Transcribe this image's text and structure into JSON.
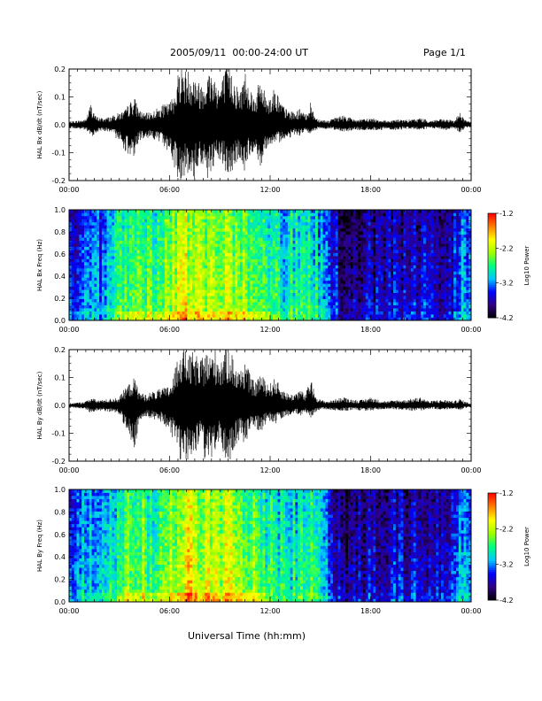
{
  "header": {
    "title": "2005/09/11  00:00-24:00 UT",
    "page": "Page 1/1"
  },
  "x_axis_title": "Universal Time (hh:mm)",
  "chart_data": [
    {
      "type": "line",
      "ylabel": "HAL Bx dB/dt (nT/sec)",
      "xlim_hours": [
        0,
        24
      ],
      "ylim": [
        -0.2,
        0.2
      ],
      "xticks": [
        "00:00",
        "06:00",
        "12:00",
        "18:00",
        "00:00"
      ],
      "yticks": [
        "-0.2",
        "-0.1",
        "0.0",
        "0.1",
        "0.2"
      ],
      "series": [
        {
          "envelope": {
            "t": [
              0,
              0.5,
              1,
              1.3,
              1.6,
              2,
              2.5,
              3,
              3.3,
              3.6,
              3.9,
              4.2,
              4.5,
              5,
              5.5,
              6,
              6.3,
              6.6,
              6.9,
              7.2,
              7.5,
              7.8,
              8.1,
              8.4,
              8.7,
              9,
              9.3,
              9.6,
              9.9,
              10.2,
              10.5,
              10.8,
              11.1,
              11.4,
              11.7,
              12,
              12.3,
              12.6,
              12.9,
              13.2,
              13.5,
              13.8,
              14.1,
              14.4,
              14.7,
              15,
              15.5,
              16,
              16.5,
              17,
              17.5,
              18,
              18.5,
              19,
              19.5,
              20,
              20.5,
              21,
              21.5,
              22,
              22.5,
              23,
              23.3,
              23.6,
              24
            ],
            "max": [
              0.012,
              0.015,
              0.02,
              0.08,
              0.03,
              0.025,
              0.03,
              0.045,
              0.05,
              0.08,
              0.1,
              0.055,
              0.04,
              0.05,
              0.07,
              0.08,
              0.12,
              0.22,
              0.2,
              0.2,
              0.18,
              0.15,
              0.17,
              0.2,
              0.18,
              0.14,
              0.2,
              0.22,
              0.16,
              0.12,
              0.2,
              0.14,
              0.1,
              0.17,
              0.12,
              0.1,
              0.14,
              0.09,
              0.06,
              0.05,
              0.045,
              0.06,
              0.035,
              0.08,
              0.03,
              0.02,
              0.015,
              0.03,
              0.035,
              0.02,
              0.02,
              0.025,
              0.02,
              0.015,
              0.02,
              0.018,
              0.02,
              0.025,
              0.015,
              0.02,
              0.02,
              0.015,
              0.05,
              0.02,
              0.01
            ],
            "min": [
              -0.012,
              -0.015,
              -0.02,
              -0.045,
              -0.03,
              -0.02,
              -0.03,
              -0.06,
              -0.09,
              -0.125,
              -0.11,
              -0.06,
              -0.045,
              -0.05,
              -0.07,
              -0.1,
              -0.16,
              -0.21,
              -0.18,
              -0.2,
              -0.2,
              -0.13,
              -0.19,
              -0.2,
              -0.16,
              -0.13,
              -0.17,
              -0.2,
              -0.15,
              -0.12,
              -0.18,
              -0.11,
              -0.09,
              -0.16,
              -0.09,
              -0.07,
              -0.08,
              -0.06,
              -0.05,
              -0.045,
              -0.035,
              -0.04,
              -0.025,
              -0.035,
              -0.02,
              -0.015,
              -0.015,
              -0.02,
              -0.025,
              -0.02,
              -0.02,
              -0.02,
              -0.02,
              -0.015,
              -0.02,
              -0.015,
              -0.015,
              -0.02,
              -0.012,
              -0.015,
              -0.02,
              -0.012,
              -0.035,
              -0.012,
              -0.008
            ]
          }
        }
      ]
    },
    {
      "type": "heatmap",
      "ylabel": "HAL Bx Freq (Hz)",
      "xlim_hours": [
        0,
        24
      ],
      "ylim": [
        0,
        1.0
      ],
      "xticks": [
        "00:00",
        "06:00",
        "12:00",
        "18:00",
        "00:00"
      ],
      "yticks": [
        "0.0",
        "0.2",
        "0.4",
        "0.6",
        "0.8",
        "1.0"
      ],
      "colorbar": {
        "label": "Log10 Power",
        "range": [
          -4.2,
          -1.2
        ],
        "ticks": [
          "-1.2",
          "-2.2",
          "-3.2",
          "-4.2"
        ],
        "colors": [
          "#000000",
          "#2e0082",
          "#0000ff",
          "#00c8ff",
          "#00ff80",
          "#a0ff00",
          "#ffff00",
          "#ff8000",
          "#ff0000"
        ]
      },
      "activity": {
        "t": [
          0,
          1,
          1.2,
          1.5,
          2,
          2.5,
          3,
          3.5,
          4,
          4.5,
          5,
          5.5,
          6,
          6.5,
          7,
          7.5,
          8,
          8.5,
          9,
          9.5,
          10,
          10.5,
          11,
          11.5,
          12,
          12.5,
          13,
          13.5,
          14,
          14.5,
          15,
          15.5,
          16,
          16.5,
          17,
          18,
          19,
          20,
          21,
          22,
          23,
          23.5,
          24
        ],
        "level": [
          -3.4,
          -3.0,
          -2.8,
          -3.2,
          -3.1,
          -2.9,
          -2.6,
          -2.5,
          -2.3,
          -2.4,
          -2.6,
          -2.5,
          -2.3,
          -2.1,
          -2.0,
          -2.1,
          -2.2,
          -2.3,
          -2.2,
          -2.2,
          -2.3,
          -2.4,
          -2.5,
          -2.5,
          -2.6,
          -2.7,
          -2.8,
          -2.7,
          -2.8,
          -2.7,
          -3.0,
          -3.3,
          -3.5,
          -3.7,
          -3.7,
          -3.6,
          -3.6,
          -3.5,
          -3.5,
          -3.6,
          -3.4,
          -3.1,
          -3.0
        ]
      }
    },
    {
      "type": "line",
      "ylabel": "HAL By dB/dt (nT/sec)",
      "xlim_hours": [
        0,
        24
      ],
      "ylim": [
        -0.2,
        0.2
      ],
      "xticks": [
        "00:00",
        "06:00",
        "12:00",
        "18:00",
        "00:00"
      ],
      "yticks": [
        "-0.2",
        "-0.1",
        "0.0",
        "0.1",
        "0.2"
      ],
      "series": [
        {
          "envelope": {
            "t": [
              0,
              0.5,
              1,
              1.3,
              1.6,
              2,
              2.5,
              3,
              3.3,
              3.6,
              3.9,
              4.2,
              4.5,
              5,
              5.5,
              6,
              6.3,
              6.6,
              6.9,
              7.2,
              7.5,
              7.8,
              8.1,
              8.4,
              8.7,
              9,
              9.3,
              9.6,
              9.9,
              10.2,
              10.5,
              10.8,
              11.1,
              11.4,
              11.7,
              12,
              12.3,
              12.6,
              12.9,
              13.2,
              13.5,
              13.8,
              14.1,
              14.4,
              14.7,
              15,
              15.5,
              16,
              16.5,
              17,
              17.5,
              18,
              18.5,
              19,
              19.5,
              20,
              20.5,
              21,
              21.5,
              22,
              22.5,
              23,
              23.3,
              23.6,
              24
            ],
            "max": [
              0.008,
              0.01,
              0.015,
              0.03,
              0.02,
              0.02,
              0.025,
              0.03,
              0.06,
              0.08,
              0.1,
              0.05,
              0.04,
              0.05,
              0.06,
              0.07,
              0.12,
              0.22,
              0.21,
              0.18,
              0.2,
              0.15,
              0.2,
              0.18,
              0.21,
              0.17,
              0.2,
              0.22,
              0.15,
              0.12,
              0.17,
              0.11,
              0.08,
              0.12,
              0.09,
              0.08,
              0.1,
              0.07,
              0.05,
              0.04,
              0.045,
              0.06,
              0.035,
              0.1,
              0.04,
              0.02,
              0.015,
              0.025,
              0.03,
              0.02,
              0.02,
              0.03,
              0.02,
              0.015,
              0.02,
              0.02,
              0.025,
              0.03,
              0.015,
              0.02,
              0.02,
              0.015,
              0.025,
              0.015,
              0.008
            ],
            "min": [
              -0.008,
              -0.01,
              -0.015,
              -0.03,
              -0.02,
              -0.02,
              -0.025,
              -0.035,
              -0.07,
              -0.11,
              -0.16,
              -0.06,
              -0.045,
              -0.05,
              -0.06,
              -0.09,
              -0.14,
              -0.21,
              -0.19,
              -0.2,
              -0.2,
              -0.14,
              -0.2,
              -0.2,
              -0.17,
              -0.15,
              -0.19,
              -0.2,
              -0.15,
              -0.12,
              -0.15,
              -0.1,
              -0.08,
              -0.1,
              -0.08,
              -0.06,
              -0.07,
              -0.05,
              -0.04,
              -0.035,
              -0.03,
              -0.04,
              -0.025,
              -0.05,
              -0.025,
              -0.015,
              -0.015,
              -0.02,
              -0.02,
              -0.015,
              -0.02,
              -0.02,
              -0.015,
              -0.012,
              -0.015,
              -0.015,
              -0.02,
              -0.02,
              -0.012,
              -0.015,
              -0.015,
              -0.012,
              -0.02,
              -0.01,
              -0.008
            ]
          }
        }
      ]
    },
    {
      "type": "heatmap",
      "ylabel": "HAL By Freq (Hz)",
      "xlim_hours": [
        0,
        24
      ],
      "ylim": [
        0,
        1.0
      ],
      "xticks": [
        "00:00",
        "06:00",
        "12:00",
        "18:00",
        "00:00"
      ],
      "yticks": [
        "0.0",
        "0.2",
        "0.4",
        "0.6",
        "0.8",
        "1.0"
      ],
      "colorbar": {
        "label": "Log10 Power",
        "range": [
          -4.2,
          -1.2
        ],
        "ticks": [
          "-1.2",
          "-2.2",
          "-3.2",
          "-4.2"
        ],
        "colors": [
          "#000000",
          "#2e0082",
          "#0000ff",
          "#00c8ff",
          "#00ff80",
          "#a0ff00",
          "#ffff00",
          "#ff8000",
          "#ff0000"
        ]
      },
      "activity": {
        "t": [
          0,
          1,
          1.2,
          1.5,
          2,
          2.5,
          3,
          3.5,
          4,
          4.5,
          5,
          5.5,
          6,
          6.5,
          7,
          7.5,
          8,
          8.5,
          9,
          9.5,
          10,
          10.5,
          11,
          11.5,
          12,
          12.5,
          13,
          13.5,
          14,
          14.5,
          15,
          15.5,
          16,
          16.5,
          17,
          18,
          19,
          20,
          21,
          22,
          23,
          23.5,
          24
        ],
        "level": [
          -3.3,
          -2.9,
          -2.8,
          -3.1,
          -3.0,
          -2.8,
          -2.6,
          -2.4,
          -2.3,
          -2.4,
          -2.6,
          -2.5,
          -2.3,
          -2.1,
          -1.9,
          -2.0,
          -2.1,
          -2.2,
          -2.1,
          -2.1,
          -2.2,
          -2.3,
          -2.4,
          -2.5,
          -2.6,
          -2.7,
          -2.8,
          -2.7,
          -2.7,
          -2.6,
          -2.9,
          -3.2,
          -3.5,
          -3.7,
          -3.7,
          -3.6,
          -3.5,
          -3.5,
          -3.5,
          -3.5,
          -3.3,
          -3.0,
          -3.0
        ]
      }
    }
  ]
}
